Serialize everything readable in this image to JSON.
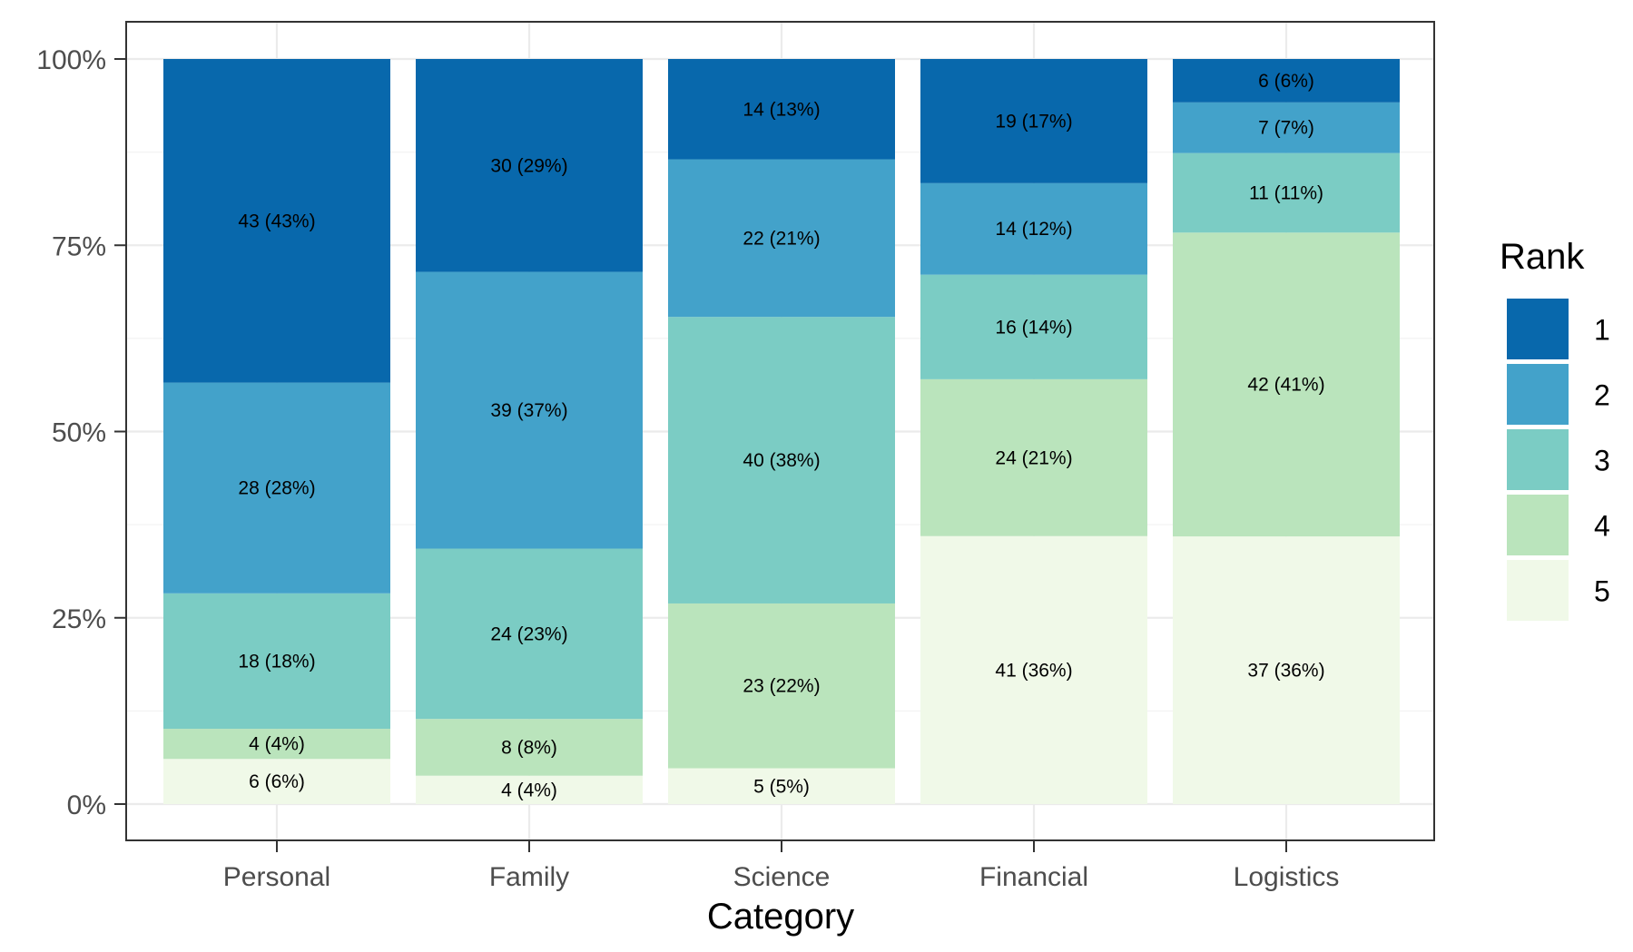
{
  "chart_data": {
    "type": "bar",
    "stacked": true,
    "percent": true,
    "title": "",
    "xlabel": "Category",
    "ylabel": "",
    "ylim": [
      0,
      100
    ],
    "yticks": [
      "0%",
      "25%",
      "50%",
      "75%",
      "100%"
    ],
    "ytick_values": [
      0,
      25,
      50,
      75,
      100
    ],
    "categories": [
      "Personal",
      "Family",
      "Science",
      "Financial",
      "Logistics"
    ],
    "legend": {
      "title": "Rank",
      "position": "right"
    },
    "series": [
      {
        "name": "1",
        "color": "#0868ac",
        "counts": [
          43,
          30,
          14,
          19,
          6
        ],
        "values": [
          43,
          29,
          13,
          17,
          6
        ],
        "labels": [
          "43 (43%)",
          "30 (29%)",
          "14 (13%)",
          "19 (17%)",
          "6 (6%)"
        ]
      },
      {
        "name": "2",
        "color": "#43a2ca",
        "counts": [
          28,
          39,
          22,
          14,
          7
        ],
        "values": [
          28,
          37,
          21,
          12,
          7
        ],
        "labels": [
          "28 (28%)",
          "39 (37%)",
          "22 (21%)",
          "14 (12%)",
          "7 (7%)"
        ]
      },
      {
        "name": "3",
        "color": "#7bccc4",
        "counts": [
          18,
          24,
          40,
          16,
          11
        ],
        "values": [
          18,
          23,
          38,
          14,
          11
        ],
        "labels": [
          "18 (18%)",
          "24 (23%)",
          "40 (38%)",
          "16 (14%)",
          "11 (11%)"
        ]
      },
      {
        "name": "4",
        "color": "#bae4bc",
        "counts": [
          4,
          8,
          23,
          24,
          42
        ],
        "values": [
          4,
          8,
          22,
          21,
          41
        ],
        "labels": [
          "4 (4%)",
          "8 (8%)",
          "23 (22%)",
          "24 (21%)",
          "42 (41%)"
        ]
      },
      {
        "name": "5",
        "color": "#f0f9e8",
        "counts": [
          6,
          4,
          5,
          41,
          37
        ],
        "values": [
          6,
          4,
          5,
          36,
          36
        ],
        "labels": [
          "6 (6%)",
          "4 (4%)",
          "5 (5%)",
          "41 (36%)",
          "37 (36%)"
        ]
      }
    ]
  }
}
